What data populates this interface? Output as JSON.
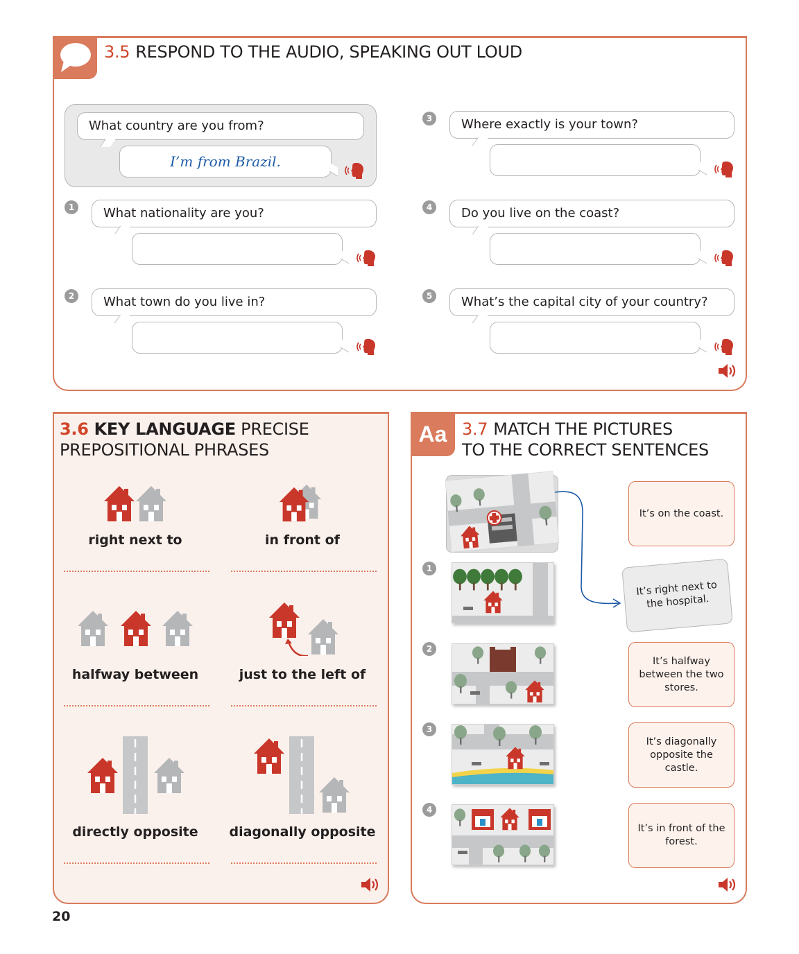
{
  "section_35": {
    "number": "3.5",
    "title": "RESPOND TO THE AUDIO, SPEAKING OUT LOUD",
    "example": {
      "question": "What country are you from?",
      "answer": "I’m from Brazil."
    },
    "items": [
      {
        "num": "1",
        "question": "What nationality are you?"
      },
      {
        "num": "2",
        "question": "What town do you live in?"
      },
      {
        "num": "3",
        "question": "Where exactly is your town?"
      },
      {
        "num": "4",
        "question": "Do you live on the coast?"
      },
      {
        "num": "5",
        "question": "What’s the capital city of your country?"
      }
    ]
  },
  "section_36": {
    "number": "3.6",
    "title_bold": "KEY LANGUAGE",
    "title_rest": " PRECISE",
    "title_line2": "PREPOSITIONAL PHRASES",
    "phrases": [
      "right next to",
      "in front of",
      "halfway between",
      "just to the left of",
      "directly opposite",
      "diagonally opposite"
    ]
  },
  "section_37": {
    "icon_text": "Aa",
    "number": "3.7",
    "title_line1": "MATCH THE PICTURES",
    "title_line2": "TO THE CORRECT SENTENCES",
    "item_numbers": [
      "1",
      "2",
      "3",
      "4"
    ],
    "sentences": [
      "It’s on the coast.",
      "It’s right next to the hospital.",
      "It’s halfway between the two stores.",
      "It’s diagonally opposite the castle.",
      "It’s in front of the forest."
    ]
  },
  "page_number": "20",
  "colors": {
    "accent": "#d97b5c",
    "number_red": "#d0462a",
    "house_red": "#c8372a",
    "house_grey": "#b4b6b8",
    "answer_blue": "#1c5aa6"
  }
}
